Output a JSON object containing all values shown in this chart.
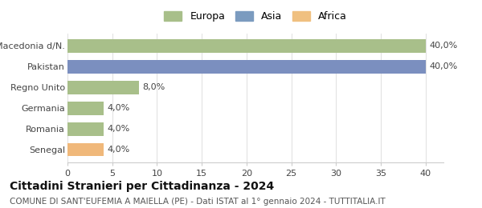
{
  "categories": [
    "Macedonia d/N.",
    "Pakistan",
    "Regno Unito",
    "Germania",
    "Romania",
    "Senegal"
  ],
  "values": [
    40.0,
    40.0,
    8.0,
    4.0,
    4.0,
    4.0
  ],
  "bar_colors": [
    "#a8bf8a",
    "#7b8fbf",
    "#a8bf8a",
    "#a8bf8a",
    "#a8bf8a",
    "#f0b87a"
  ],
  "bar_labels": [
    "40,0%",
    "40,0%",
    "8,0%",
    "4,0%",
    "4,0%",
    "4,0%"
  ],
  "legend_labels": [
    "Europa",
    "Asia",
    "Africa"
  ],
  "legend_colors": [
    "#a8bf8a",
    "#7b9bbf",
    "#f0c080"
  ],
  "xlim": [
    0,
    42
  ],
  "xticks": [
    0,
    5,
    10,
    15,
    20,
    25,
    30,
    35,
    40
  ],
  "title": "Cittadini Stranieri per Cittadinanza - 2024",
  "subtitle": "COMUNE DI SANT'EUFEMIA A MAIELLA (PE) - Dati ISTAT al 1° gennaio 2024 - TUTTITALIA.IT",
  "title_fontsize": 10,
  "subtitle_fontsize": 7.5,
  "label_fontsize": 8,
  "tick_fontsize": 8,
  "legend_fontsize": 9,
  "background_color": "#ffffff",
  "grid_color": "#e0e0e0"
}
